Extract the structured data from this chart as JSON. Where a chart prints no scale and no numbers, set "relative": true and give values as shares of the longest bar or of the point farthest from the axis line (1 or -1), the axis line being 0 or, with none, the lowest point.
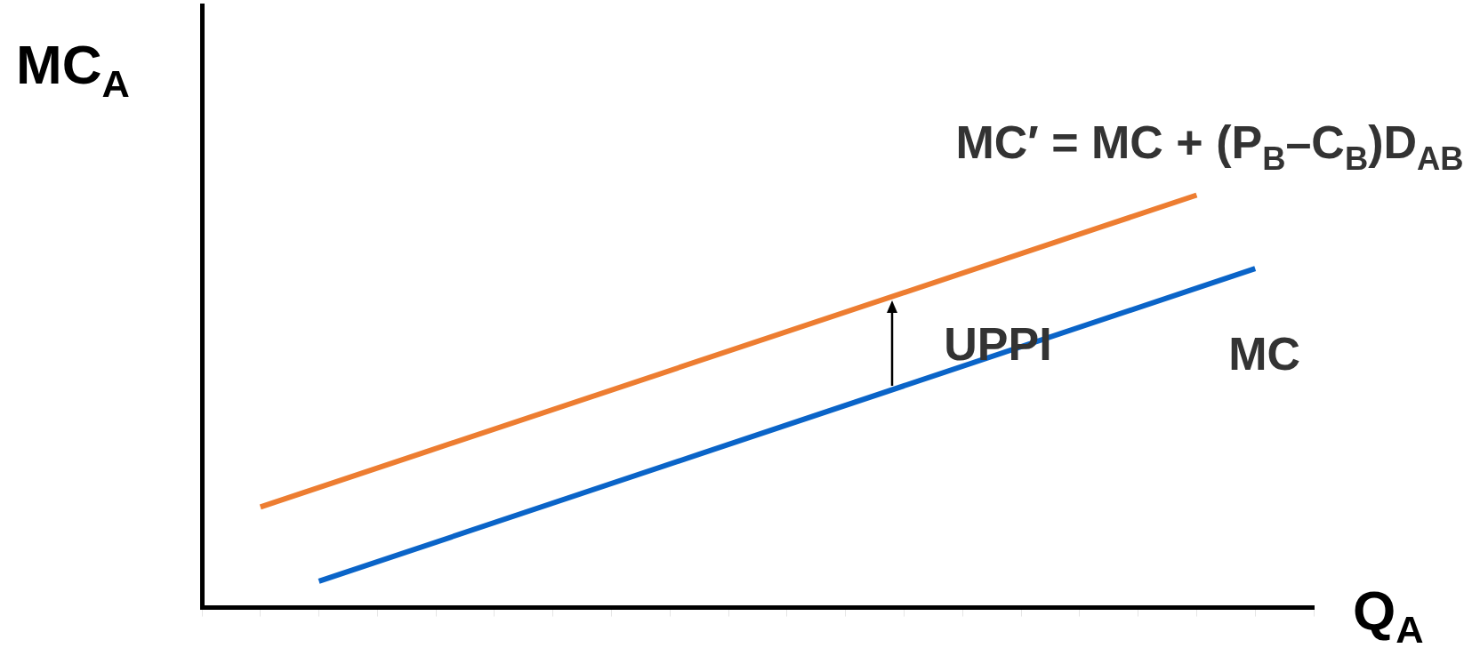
{
  "chart_data": {
    "type": "line",
    "relative": true,
    "xlabel": "Q$_{A}$",
    "ylabel": "MC$_{A}$",
    "grid": false,
    "legend": false,
    "marker": "none",
    "line_style": "solid",
    "categories": [
      null,
      null,
      null,
      null,
      null,
      null,
      null,
      null,
      null,
      null,
      null,
      null,
      null,
      null,
      null,
      null,
      null,
      null,
      null,
      null
    ],
    "series": [
      {
        "name": "MC′ = MC + (P$_{B}$–C$_{B}$)D$_{AB}$",
        "color": "#ed7d31",
        "values": [
          null,
          0.244,
          null,
          null,
          null,
          null,
          null,
          null,
          null,
          null,
          null,
          null,
          null,
          null,
          null,
          null,
          null,
          1,
          null,
          null
        ]
      },
      {
        "name": "MC",
        "color": "#0a64c8",
        "values": [
          null,
          null,
          0.064,
          null,
          null,
          null,
          null,
          null,
          null,
          null,
          null,
          null,
          null,
          null,
          null,
          null,
          null,
          null,
          0.822,
          null
        ]
      }
    ],
    "annotations": [
      "UPPI"
    ]
  }
}
